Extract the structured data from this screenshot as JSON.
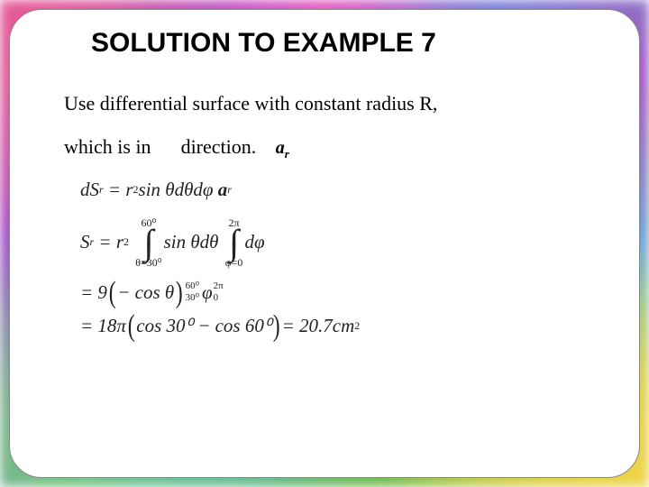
{
  "title": "SOLUTION TO EXAMPLE 7",
  "body": {
    "line1": "Use differential surface with constant radius R,",
    "line2a": "which is in",
    "line2b": "direction."
  },
  "vec_label": "a",
  "vec_sub": "r",
  "eq1": {
    "lhs": "dS",
    "lhs_sub": "r",
    "rhs_a": "= r",
    "rhs_exp": "2",
    "rhs_b": " sin θdθdφ",
    "vec": "a",
    "vec_sub": "r"
  },
  "eq2": {
    "lhs": "S",
    "lhs_sub": "r",
    "eq_r2": "= r",
    "exp2": "2",
    "int1_top": "60⁰",
    "int1_bot": "θ=30⁰",
    "int1_expr": "sin θdθ",
    "int2_top": "2π",
    "int2_bot": "φ=0",
    "int2_expr": "dφ"
  },
  "eq3": {
    "pre": "= 9",
    "inner1": "− cos θ",
    "eval1_top": "60⁰",
    "eval1_bot": "30⁰",
    "mid": "φ",
    "eval2_top": "2π",
    "eval2_bot": "0"
  },
  "eq4": {
    "pre": "= 18π",
    "inner": "cos 30⁰ − cos 60⁰",
    "result": "= 20.7",
    "unit": "cm",
    "unit_exp": "2"
  },
  "colors": {
    "text": "#000000",
    "card_bg": "#ffffff",
    "card_border": "#888888"
  }
}
